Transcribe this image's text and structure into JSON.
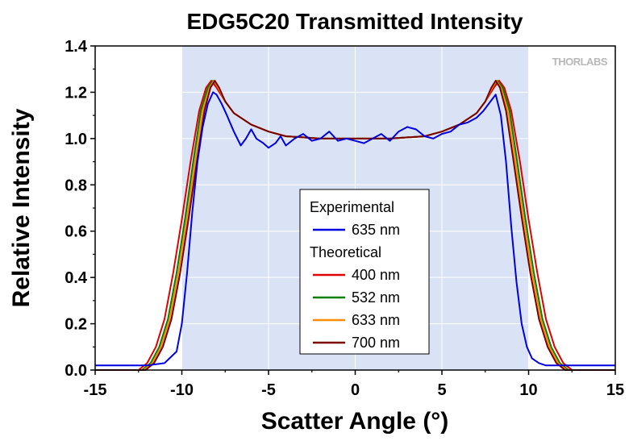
{
  "chart_data": {
    "type": "line",
    "title": "EDG5C20 Transmitted Intensity",
    "xlabel": "Scatter Angle (°)",
    "ylabel": "Relative Intensity",
    "xlim": [
      -15,
      15
    ],
    "ylim": [
      0,
      1.4
    ],
    "xticks": [
      "-15",
      "-10",
      "-5",
      "0",
      "5",
      "10",
      "15"
    ],
    "yticks": [
      "0.0",
      "0.2",
      "0.4",
      "0.6",
      "0.8",
      "1.0",
      "1.2",
      "1.4"
    ],
    "shaded_region": [
      -10,
      10
    ],
    "shaded_color": "#dae3f5",
    "grid": true,
    "logo_text": "THORLABS",
    "legend": {
      "placement": "center-bottom",
      "groups": [
        {
          "heading": "Experimental",
          "entries": [
            {
              "label": "635 nm",
              "color": "#0000e0"
            }
          ]
        },
        {
          "heading": "Theoretical",
          "entries": [
            {
              "label": "400 nm",
              "color": "#e00000"
            },
            {
              "label": "532 nm",
              "color": "#008000"
            },
            {
              "label": "633 nm",
              "color": "#ff8c00"
            },
            {
              "label": "700 nm",
              "color": "#7a0000"
            }
          ]
        }
      ]
    },
    "series": [
      {
        "name": "635 nm",
        "group": "Experimental",
        "color": "#0000e0",
        "x": [
          -15,
          -12,
          -11,
          -10.3,
          -10,
          -9.7,
          -9.4,
          -9.1,
          -8.8,
          -8.5,
          -8.2,
          -8,
          -7.7,
          -7.4,
          -7,
          -6.6,
          -6.3,
          -6,
          -5.7,
          -5.3,
          -5,
          -4.6,
          -4.3,
          -4,
          -3.5,
          -3,
          -2.5,
          -2,
          -1.5,
          -1,
          -0.5,
          0,
          0.5,
          1,
          1.5,
          2,
          2.5,
          3,
          3.5,
          4,
          4.5,
          5,
          5.5,
          6,
          6.5,
          7,
          7.4,
          7.8,
          8.1,
          8.4,
          8.7,
          9,
          9.3,
          9.6,
          9.9,
          10.2,
          10.6,
          11,
          12,
          15
        ],
        "y": [
          0.02,
          0.02,
          0.03,
          0.08,
          0.2,
          0.42,
          0.68,
          0.9,
          1.05,
          1.15,
          1.2,
          1.19,
          1.15,
          1.1,
          1.03,
          0.97,
          1.0,
          1.04,
          1.0,
          0.98,
          0.96,
          0.98,
          1.01,
          0.97,
          1.0,
          1.02,
          0.99,
          1.0,
          1.03,
          0.99,
          1.0,
          0.99,
          0.98,
          1.0,
          1.02,
          0.99,
          1.03,
          1.05,
          1.04,
          1.01,
          1.0,
          1.02,
          1.03,
          1.06,
          1.07,
          1.09,
          1.12,
          1.16,
          1.19,
          1.1,
          0.9,
          0.62,
          0.38,
          0.2,
          0.1,
          0.05,
          0.03,
          0.02,
          0.02,
          0.02
        ]
      },
      {
        "name": "400 nm",
        "group": "Theoretical",
        "color": "#e00000",
        "x": [
          -15,
          -12.5,
          -12,
          -11.5,
          -11,
          -10.5,
          -10,
          -9.5,
          -9,
          -8.6,
          -8.3,
          -8,
          -7.5,
          -7,
          -6,
          -5,
          -4,
          -3,
          -2,
          -1,
          0,
          1,
          2,
          3,
          4,
          5,
          6,
          7,
          7.5,
          8,
          8.3,
          8.6,
          9,
          9.5,
          10,
          10.5,
          11,
          11.5,
          12,
          12.5,
          15
        ],
        "y": [
          0.0,
          0.0,
          0.03,
          0.1,
          0.22,
          0.42,
          0.65,
          0.9,
          1.12,
          1.22,
          1.25,
          1.22,
          1.16,
          1.11,
          1.06,
          1.03,
          1.01,
          1.005,
          1.0,
          1.0,
          1.0,
          1.0,
          1.0,
          1.005,
          1.01,
          1.03,
          1.06,
          1.11,
          1.16,
          1.22,
          1.25,
          1.22,
          1.12,
          0.9,
          0.65,
          0.42,
          0.22,
          0.1,
          0.03,
          0.0,
          0.0
        ]
      },
      {
        "name": "532 nm",
        "group": "Theoretical",
        "color": "#008000",
        "x": [
          -15,
          -12.3,
          -11.8,
          -11.3,
          -10.8,
          -10.3,
          -9.8,
          -9.3,
          -8.9,
          -8.5,
          -8.2,
          -7.9,
          -7.5,
          -7,
          -6,
          -5,
          -4,
          -3,
          -2,
          -1,
          0,
          1,
          2,
          3,
          4,
          5,
          6,
          7,
          7.5,
          7.9,
          8.2,
          8.5,
          8.9,
          9.3,
          9.8,
          10.3,
          10.8,
          11.3,
          11.8,
          12.3,
          15
        ],
        "y": [
          0.0,
          0.0,
          0.03,
          0.1,
          0.22,
          0.42,
          0.66,
          0.92,
          1.12,
          1.22,
          1.25,
          1.22,
          1.16,
          1.11,
          1.06,
          1.03,
          1.01,
          1.005,
          1.0,
          1.0,
          1.0,
          1.0,
          1.0,
          1.005,
          1.01,
          1.03,
          1.06,
          1.11,
          1.16,
          1.22,
          1.25,
          1.22,
          1.12,
          0.92,
          0.66,
          0.42,
          0.22,
          0.1,
          0.03,
          0.0,
          0.0
        ]
      },
      {
        "name": "633 nm",
        "group": "Theoretical",
        "color": "#ff8c00",
        "x": [
          -15,
          -12.2,
          -11.7,
          -11.2,
          -10.7,
          -10.2,
          -9.7,
          -9.2,
          -8.8,
          -8.4,
          -8.15,
          -7.9,
          -7.5,
          -7,
          -6,
          -5,
          -4,
          -3,
          -2,
          -1,
          0,
          1,
          2,
          3,
          4,
          5,
          6,
          7,
          7.5,
          7.9,
          8.15,
          8.4,
          8.8,
          9.2,
          9.7,
          10.2,
          10.7,
          11.2,
          11.7,
          12.2,
          15
        ],
        "y": [
          0.0,
          0.0,
          0.03,
          0.1,
          0.22,
          0.42,
          0.66,
          0.92,
          1.12,
          1.22,
          1.25,
          1.22,
          1.16,
          1.11,
          1.06,
          1.03,
          1.01,
          1.005,
          1.0,
          1.0,
          1.0,
          1.0,
          1.0,
          1.005,
          1.01,
          1.03,
          1.06,
          1.11,
          1.16,
          1.22,
          1.25,
          1.22,
          1.12,
          0.92,
          0.66,
          0.42,
          0.22,
          0.1,
          0.03,
          0.0,
          0.0
        ]
      },
      {
        "name": "700 nm",
        "group": "Theoretical",
        "color": "#7a0000",
        "x": [
          -15,
          -12.1,
          -11.6,
          -11.1,
          -10.6,
          -10.1,
          -9.6,
          -9.1,
          -8.7,
          -8.35,
          -8.1,
          -7.85,
          -7.5,
          -7,
          -6,
          -5,
          -4,
          -3,
          -2,
          -1,
          0,
          1,
          2,
          3,
          4,
          5,
          6,
          7,
          7.5,
          7.85,
          8.1,
          8.35,
          8.7,
          9.1,
          9.6,
          10.1,
          10.6,
          11.1,
          11.6,
          12.1,
          15
        ],
        "y": [
          0.0,
          0.0,
          0.03,
          0.1,
          0.22,
          0.42,
          0.66,
          0.92,
          1.12,
          1.22,
          1.25,
          1.22,
          1.16,
          1.11,
          1.06,
          1.03,
          1.01,
          1.005,
          1.0,
          1.0,
          1.0,
          1.0,
          1.0,
          1.005,
          1.01,
          1.03,
          1.06,
          1.11,
          1.16,
          1.22,
          1.25,
          1.22,
          1.12,
          0.92,
          0.66,
          0.42,
          0.22,
          0.1,
          0.03,
          0.0,
          0.0
        ]
      }
    ]
  }
}
